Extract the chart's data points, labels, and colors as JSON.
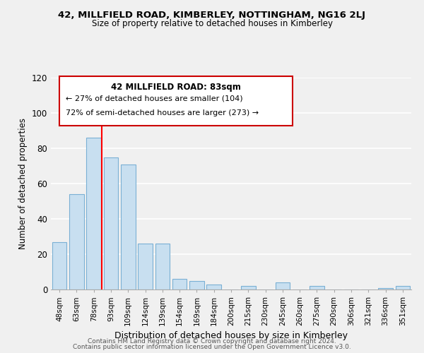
{
  "title1": "42, MILLFIELD ROAD, KIMBERLEY, NOTTINGHAM, NG16 2LJ",
  "title2": "Size of property relative to detached houses in Kimberley",
  "xlabel": "Distribution of detached houses by size in Kimberley",
  "ylabel": "Number of detached properties",
  "bar_labels": [
    "48sqm",
    "63sqm",
    "78sqm",
    "93sqm",
    "109sqm",
    "124sqm",
    "139sqm",
    "154sqm",
    "169sqm",
    "184sqm",
    "200sqm",
    "215sqm",
    "230sqm",
    "245sqm",
    "260sqm",
    "275sqm",
    "290sqm",
    "306sqm",
    "321sqm",
    "336sqm",
    "351sqm"
  ],
  "bar_values": [
    27,
    54,
    86,
    75,
    71,
    26,
    26,
    6,
    5,
    3,
    0,
    2,
    0,
    4,
    0,
    2,
    0,
    0,
    0,
    1,
    2
  ],
  "bar_color": "#c8dff0",
  "bar_edge_color": "#7ab0d4",
  "red_line_index": 2.48,
  "annotation_title": "42 MILLFIELD ROAD: 83sqm",
  "annotation_line1": "← 27% of detached houses are smaller (104)",
  "annotation_line2": "72% of semi-detached houses are larger (273) →",
  "ylim": [
    0,
    120
  ],
  "yticks": [
    0,
    20,
    40,
    60,
    80,
    100,
    120
  ],
  "footnote1": "Contains HM Land Registry data © Crown copyright and database right 2024.",
  "footnote2": "Contains public sector information licensed under the Open Government Licence v3.0.",
  "bg_color": "#f0f0f0"
}
